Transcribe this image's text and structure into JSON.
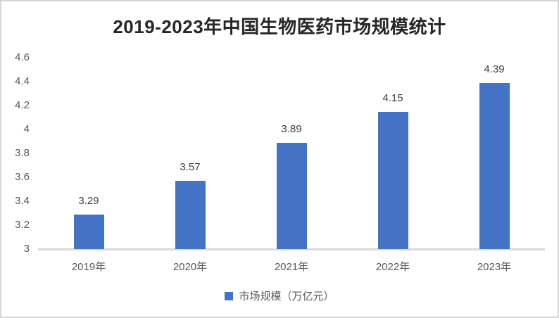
{
  "chart_data": {
    "type": "bar",
    "title": "2019-2023年中国生物医药市场规模统计",
    "categories": [
      "2019年",
      "2020年",
      "2021年",
      "2022年",
      "2023年"
    ],
    "values": [
      3.29,
      3.57,
      3.89,
      4.15,
      4.39
    ],
    "data_labels": [
      "3.29",
      "3.57",
      "3.89",
      "4.15",
      "4.39"
    ],
    "ylim": [
      3,
      4.6
    ],
    "ytick_labels": [
      "3",
      "3.2",
      "3.4",
      "3.6",
      "3.8",
      "4",
      "4.2",
      "4.4",
      "4.6"
    ],
    "ytick_values": [
      3,
      3.2,
      3.4,
      3.6,
      3.8,
      4,
      4.2,
      4.4,
      4.6
    ],
    "grid": false,
    "legend_position": "bottom",
    "legend": {
      "label": "市场规模（万亿元）"
    },
    "colors": {
      "bar": "#4472C4",
      "axis_line": "#d9d9d9",
      "tick_text": "#595959",
      "data_label_text": "#404040",
      "title_text": "#262626",
      "frame_border": "#d6d6d6",
      "background": "#ffffff"
    }
  }
}
